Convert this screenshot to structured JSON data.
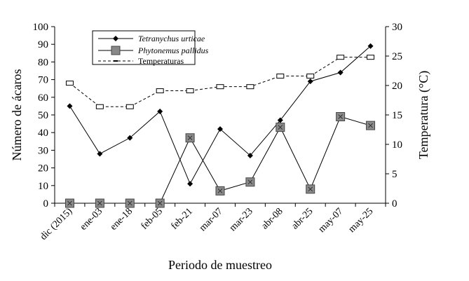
{
  "chart_data": {
    "type": "line",
    "xlabel": "Periodo de muestreo",
    "ylabel": "Número de ácaros",
    "y2label": "Temperatura (°C)",
    "ylim": [
      0,
      100
    ],
    "yticks": [
      0,
      10,
      20,
      30,
      40,
      50,
      60,
      70,
      80,
      90,
      100
    ],
    "y2lim": [
      0,
      30
    ],
    "y2ticks": [
      0,
      5,
      10,
      15,
      20,
      25,
      30
    ],
    "categories": [
      "dic (2015)",
      "ene-03",
      "ene-18",
      "feb-05",
      "feb-21",
      "mar-07",
      "mar-23",
      "abr-08",
      "abr-25",
      "may-07",
      "may-25"
    ],
    "grid": false,
    "legend_position": "top-left",
    "series": [
      {
        "name": "Tetranychus urticae",
        "axis": "left",
        "marker": "diamond",
        "line": "solid",
        "values": [
          55,
          28,
          37,
          52,
          11,
          42,
          27,
          47,
          69,
          74,
          89
        ]
      },
      {
        "name": "Phytonemus pallidus",
        "axis": "left",
        "marker": "square",
        "line": "solid",
        "values": [
          0,
          0,
          0,
          0,
          37,
          7,
          12,
          43,
          8,
          49,
          44
        ]
      },
      {
        "name": "Temperaturas",
        "axis": "right",
        "marker": "dash",
        "line": "dashed",
        "values": [
          20.4,
          16.4,
          16.4,
          19.1,
          19.1,
          19.8,
          19.8,
          21.6,
          21.6,
          24.8,
          24.8
        ]
      }
    ]
  }
}
